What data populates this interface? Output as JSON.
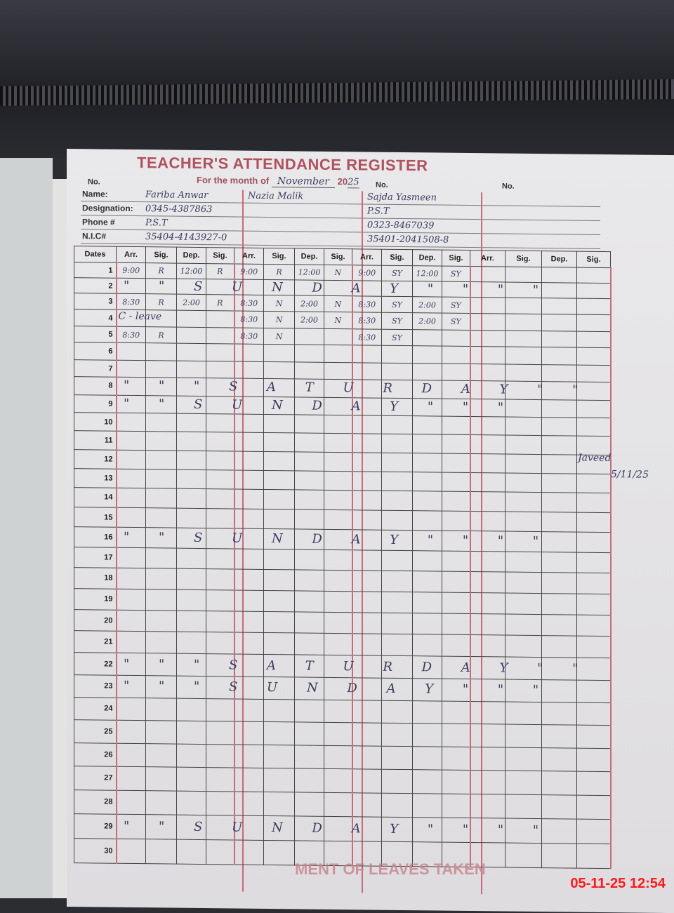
{
  "form": {
    "title": "TEACHER'S ATTENDANCE REGISTER",
    "month_label": "For the month of",
    "month_value": "November",
    "year_prefix": "20",
    "year_value": "25",
    "no_label": "No.",
    "labels": {
      "name": "Name:",
      "designation": "Designation:",
      "phone": "Phone #",
      "nic": "N.I.C#"
    },
    "teachers": [
      {
        "name": "Fariba Anwar",
        "line2": "0345-4387863",
        "line3": "P.S.T",
        "line4": "35404-4143927-0"
      },
      {
        "name": "Nazia Malik",
        "line2": "",
        "line3": "",
        "line4": ""
      },
      {
        "name": "Sajda Yasmeen",
        "line2": "P.S.T",
        "line3": "0323-8467039",
        "line4": "35401-2041508-8"
      },
      {
        "name": "",
        "line2": "",
        "line3": "",
        "line4": ""
      }
    ],
    "columns": {
      "dates": "Dates",
      "group": [
        "Arr.",
        "Sig.",
        "Dep.",
        "Sig."
      ]
    },
    "rows": [
      {
        "date": "1",
        "cells": [
          "9:00",
          "R",
          "12:00",
          "R",
          "9:00",
          "R",
          "12:00",
          "N",
          "9:00",
          "SY",
          "12:00",
          "SY",
          "",
          "",
          "",
          ""
        ]
      },
      {
        "date": "2",
        "overlay": "\" \" S U N D A Y \" \" \" \""
      },
      {
        "date": "3",
        "cells": [
          "8:30",
          "R",
          "2:00",
          "R",
          "8:30",
          "N",
          "2:00",
          "N",
          "8:30",
          "SY",
          "2:00",
          "SY",
          "",
          "",
          "",
          ""
        ]
      },
      {
        "date": "4",
        "cells": [
          "C - leave",
          "",
          "",
          "",
          "8:30",
          "N",
          "2:00",
          "N",
          "8:30",
          "SY",
          "2:00",
          "SY",
          "",
          "",
          "",
          ""
        ]
      },
      {
        "date": "5",
        "cells": [
          "8:30",
          "R",
          "",
          "",
          "8:30",
          "N",
          "",
          "",
          "8:30",
          "SY",
          "",
          "",
          "",
          "",
          "",
          ""
        ]
      },
      {
        "date": "6"
      },
      {
        "date": "7"
      },
      {
        "date": "8",
        "overlay": "\" \" \" S A T U R D A Y \" \""
      },
      {
        "date": "9",
        "overlay": "\" \" S U N D A Y \" \" \""
      },
      {
        "date": "10"
      },
      {
        "date": "11"
      },
      {
        "date": "12"
      },
      {
        "date": "13"
      },
      {
        "date": "14"
      },
      {
        "date": "15"
      },
      {
        "date": "16",
        "overlay": "\" \" S U N D A Y \" \" \" \""
      },
      {
        "date": "17"
      },
      {
        "date": "18"
      },
      {
        "date": "19"
      },
      {
        "date": "20"
      },
      {
        "date": "21"
      },
      {
        "date": "22",
        "overlay": "\" \" \" S A T U R D A Y \" \""
      },
      {
        "date": "23",
        "overlay": "\" \" \" S U N D A Y \" \" \""
      },
      {
        "date": "24"
      },
      {
        "date": "25"
      },
      {
        "date": "26"
      },
      {
        "date": "27"
      },
      {
        "date": "28"
      },
      {
        "date": "29",
        "overlay": "\" \" S U N D A Y \" \" \" \""
      },
      {
        "date": "30"
      }
    ],
    "side_note": {
      "name": "Javeed",
      "date": "5/11/25"
    },
    "footer_partial": "MENT OF LEAVES TAKEN"
  },
  "camera_timestamp": "05-11-25 12:54",
  "colors": {
    "form_red": "#b0525e",
    "ink": "#3b3e5e",
    "timestamp": "#ff1a1a"
  }
}
